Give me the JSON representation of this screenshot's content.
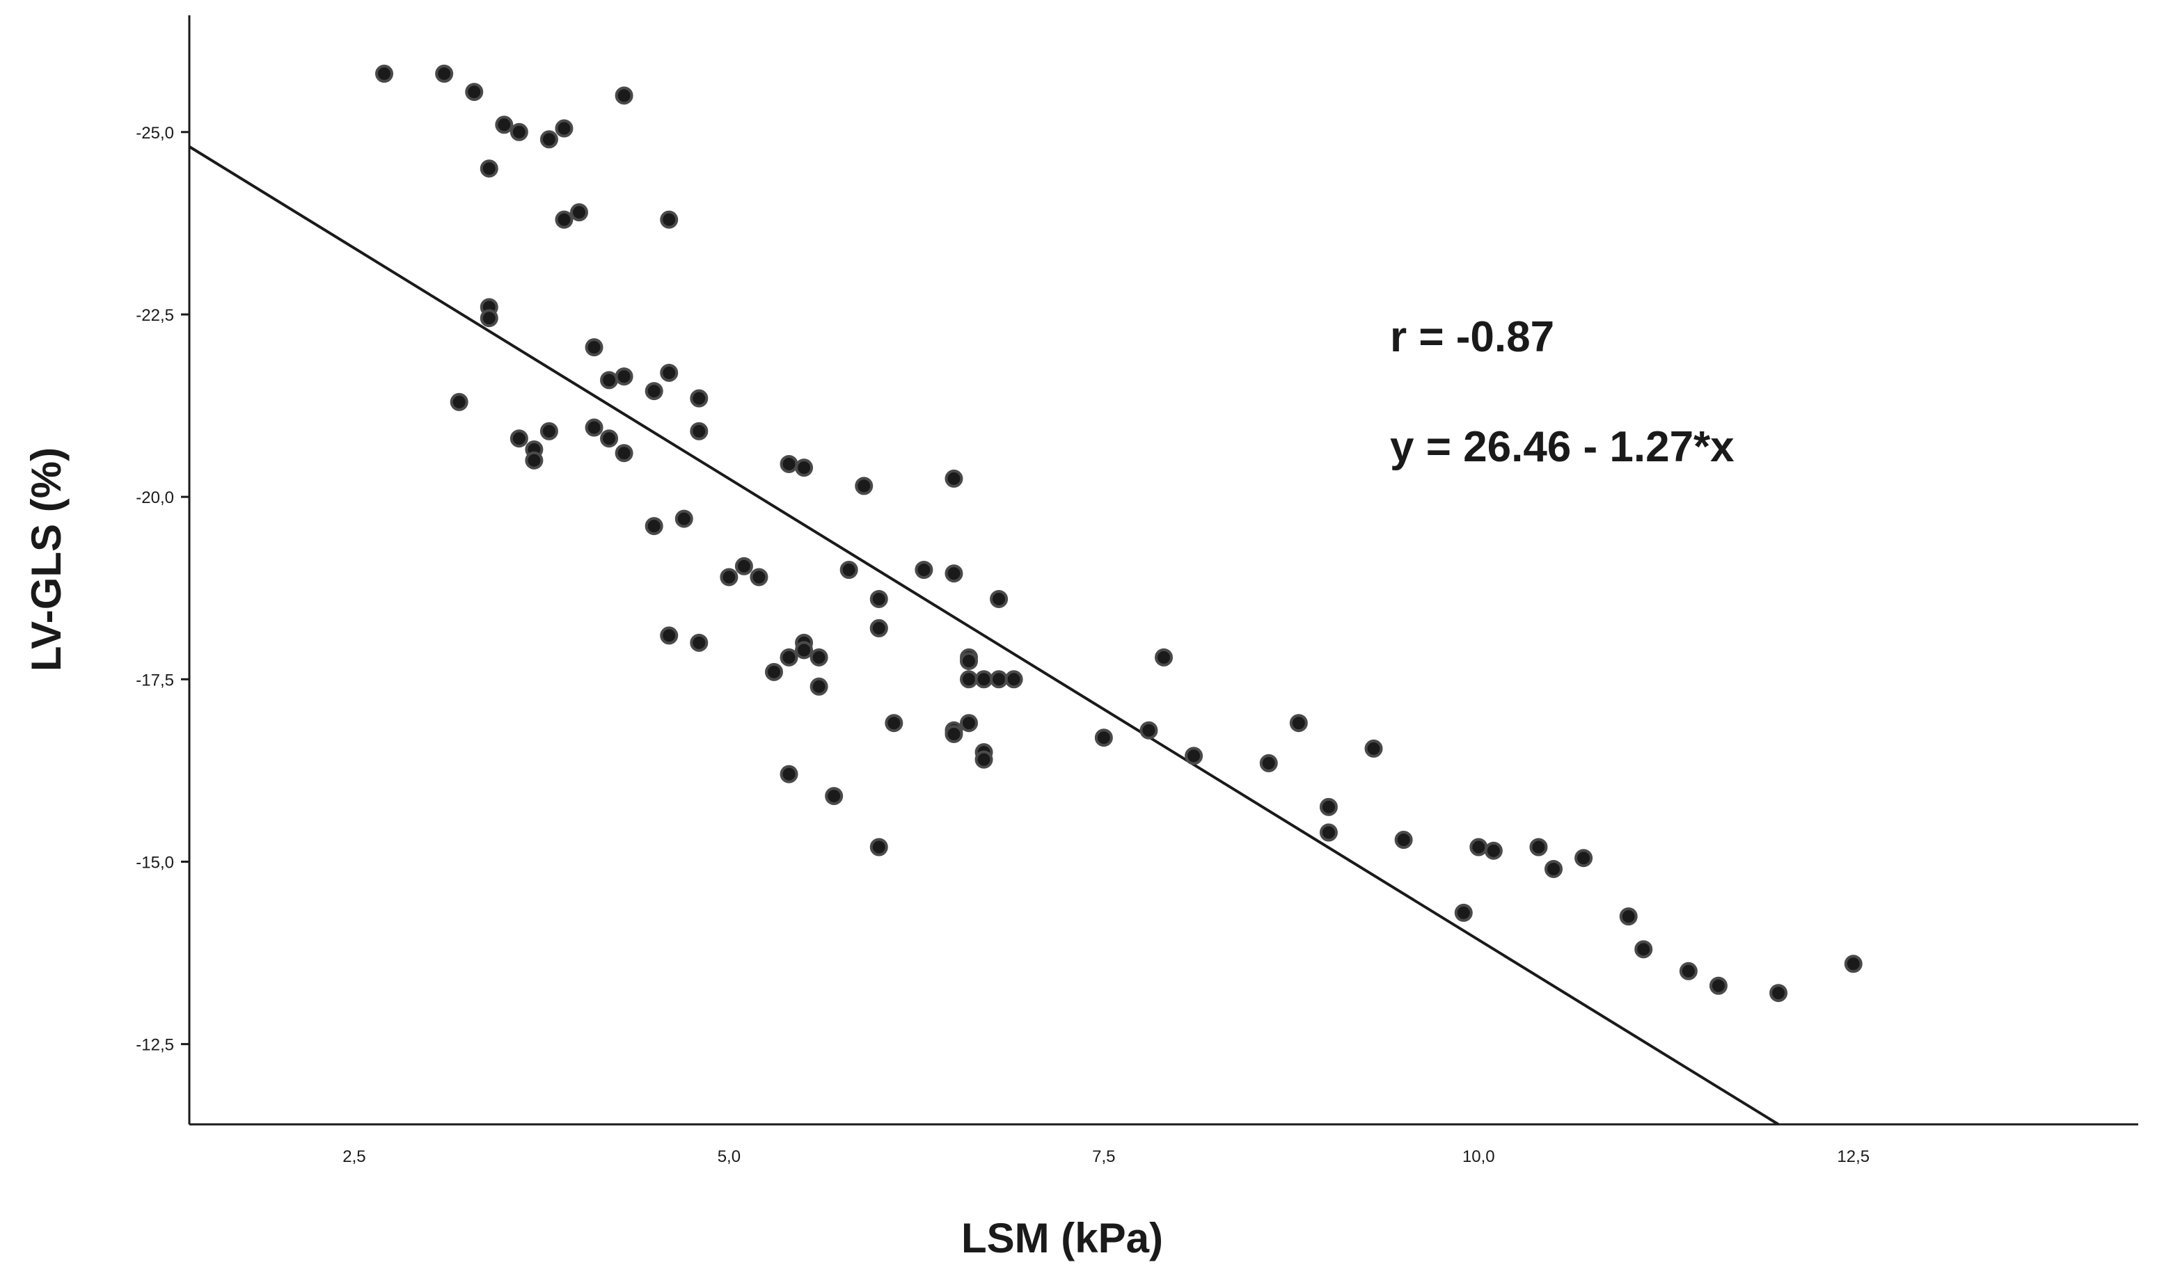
{
  "chart_data": {
    "type": "scatter",
    "xlabel": "LSM (kPa)",
    "ylabel": "LV-GLS (%)",
    "xlim": [
      1.4,
      14.4
    ],
    "ylim": [
      -26.6,
      -11.4
    ],
    "y_axis_reversed": true,
    "grid": false,
    "x_ticks": [
      2.5,
      5.0,
      7.5,
      10.0,
      12.5
    ],
    "x_tick_labels": [
      "2,5",
      "5,0",
      "7,5",
      "10,0",
      "12,5"
    ],
    "y_ticks": [
      -25.0,
      -22.5,
      -20.0,
      -17.5,
      -15.0,
      -12.5
    ],
    "y_tick_labels": [
      "-25,0",
      "-22,5",
      "-20,0",
      "-17,5",
      "-15,0",
      "-12,5"
    ],
    "annotations": [
      "r = -0.87",
      "y = 26.46 - 1.27*x"
    ],
    "regression_line": {
      "x": [
        1.4,
        12.0
      ],
      "y": [
        -24.8,
        -11.4
      ]
    },
    "points": {
      "x": [
        2.7,
        3.1,
        3.3,
        3.5,
        3.6,
        3.8,
        3.9,
        3.4,
        4.3,
        3.9,
        4.0,
        4.6,
        3.4,
        3.4,
        3.2,
        3.6,
        3.7,
        3.7,
        3.8,
        4.1,
        4.2,
        4.3,
        4.1,
        4.2,
        4.3,
        4.5,
        4.6,
        4.8,
        4.8,
        4.7,
        4.5,
        4.6,
        4.8,
        5.0,
        5.1,
        5.2,
        5.3,
        5.4,
        5.5,
        5.5,
        5.4,
        5.5,
        5.6,
        5.6,
        5.4,
        5.7,
        5.8,
        5.9,
        6.0,
        6.0,
        6.0,
        6.1,
        6.0,
        6.3,
        6.5,
        6.5,
        6.8,
        6.6,
        6.6,
        6.6,
        6.7,
        6.8,
        6.9,
        6.5,
        6.6,
        6.5,
        6.7,
        6.7,
        7.5,
        7.8,
        7.9,
        8.1,
        8.6,
        8.8,
        9.0,
        9.0,
        9.3,
        9.5,
        9.9,
        10.0,
        10.1,
        10.4,
        10.5,
        10.7,
        11.0,
        11.1,
        11.4,
        11.6,
        12.0,
        12.5
      ],
      "y": [
        -25.8,
        -25.8,
        -25.55,
        -25.1,
        -25.0,
        -24.9,
        -25.05,
        -24.5,
        -25.5,
        -23.8,
        -23.9,
        -23.8,
        -22.6,
        -22.45,
        -21.3,
        -20.8,
        -20.65,
        -20.5,
        -20.9,
        -22.05,
        -21.6,
        -21.65,
        -20.95,
        -20.8,
        -20.6,
        -21.45,
        -21.7,
        -21.35,
        -20.9,
        -19.7,
        -19.6,
        -18.1,
        -18.0,
        -18.9,
        -19.05,
        -18.9,
        -17.6,
        -20.45,
        -20.4,
        -18.0,
        -17.8,
        -17.9,
        -17.8,
        -17.4,
        -16.2,
        -15.9,
        -19.0,
        -20.15,
        -18.6,
        -18.2,
        -18.2,
        -16.9,
        -15.2,
        -19.0,
        -20.25,
        -18.95,
        -18.6,
        -17.8,
        -17.75,
        -17.5,
        -17.5,
        -17.5,
        -17.5,
        -16.8,
        -16.9,
        -16.75,
        -16.5,
        -16.4,
        -16.7,
        -16.8,
        -17.8,
        -16.45,
        -16.35,
        -16.9,
        -15.75,
        -15.4,
        -16.55,
        -15.3,
        -14.3,
        -15.2,
        -15.15,
        -15.2,
        -14.9,
        -15.05,
        -14.25,
        -13.8,
        -13.5,
        -13.3,
        -13.2,
        -13.6
      ]
    }
  }
}
